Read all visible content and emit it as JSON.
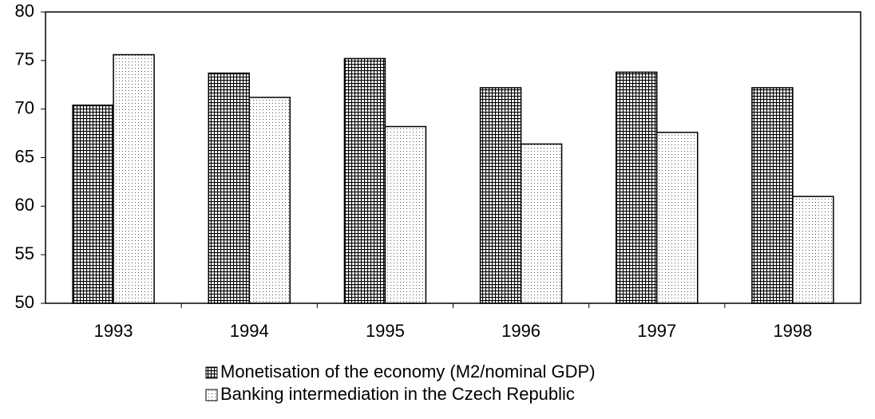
{
  "chart_data": {
    "type": "bar",
    "categories": [
      "1993",
      "1994",
      "1995",
      "1996",
      "1997",
      "1998"
    ],
    "series": [
      {
        "name": "Monetisation of the economy (M2/nominal GDP)",
        "color": "#000000",
        "pattern": "grid",
        "values": [
          70.4,
          73.7,
          75.2,
          72.2,
          73.8,
          72.2
        ]
      },
      {
        "name": "Banking intermediation in the Czech Republic",
        "color": "#000000",
        "pattern": "dots",
        "values": [
          75.6,
          71.2,
          68.2,
          66.4,
          67.6,
          61.0
        ]
      }
    ],
    "ylim": [
      50,
      80
    ],
    "yticks": [
      50,
      55,
      60,
      65,
      70,
      75,
      80
    ],
    "grid": false
  }
}
